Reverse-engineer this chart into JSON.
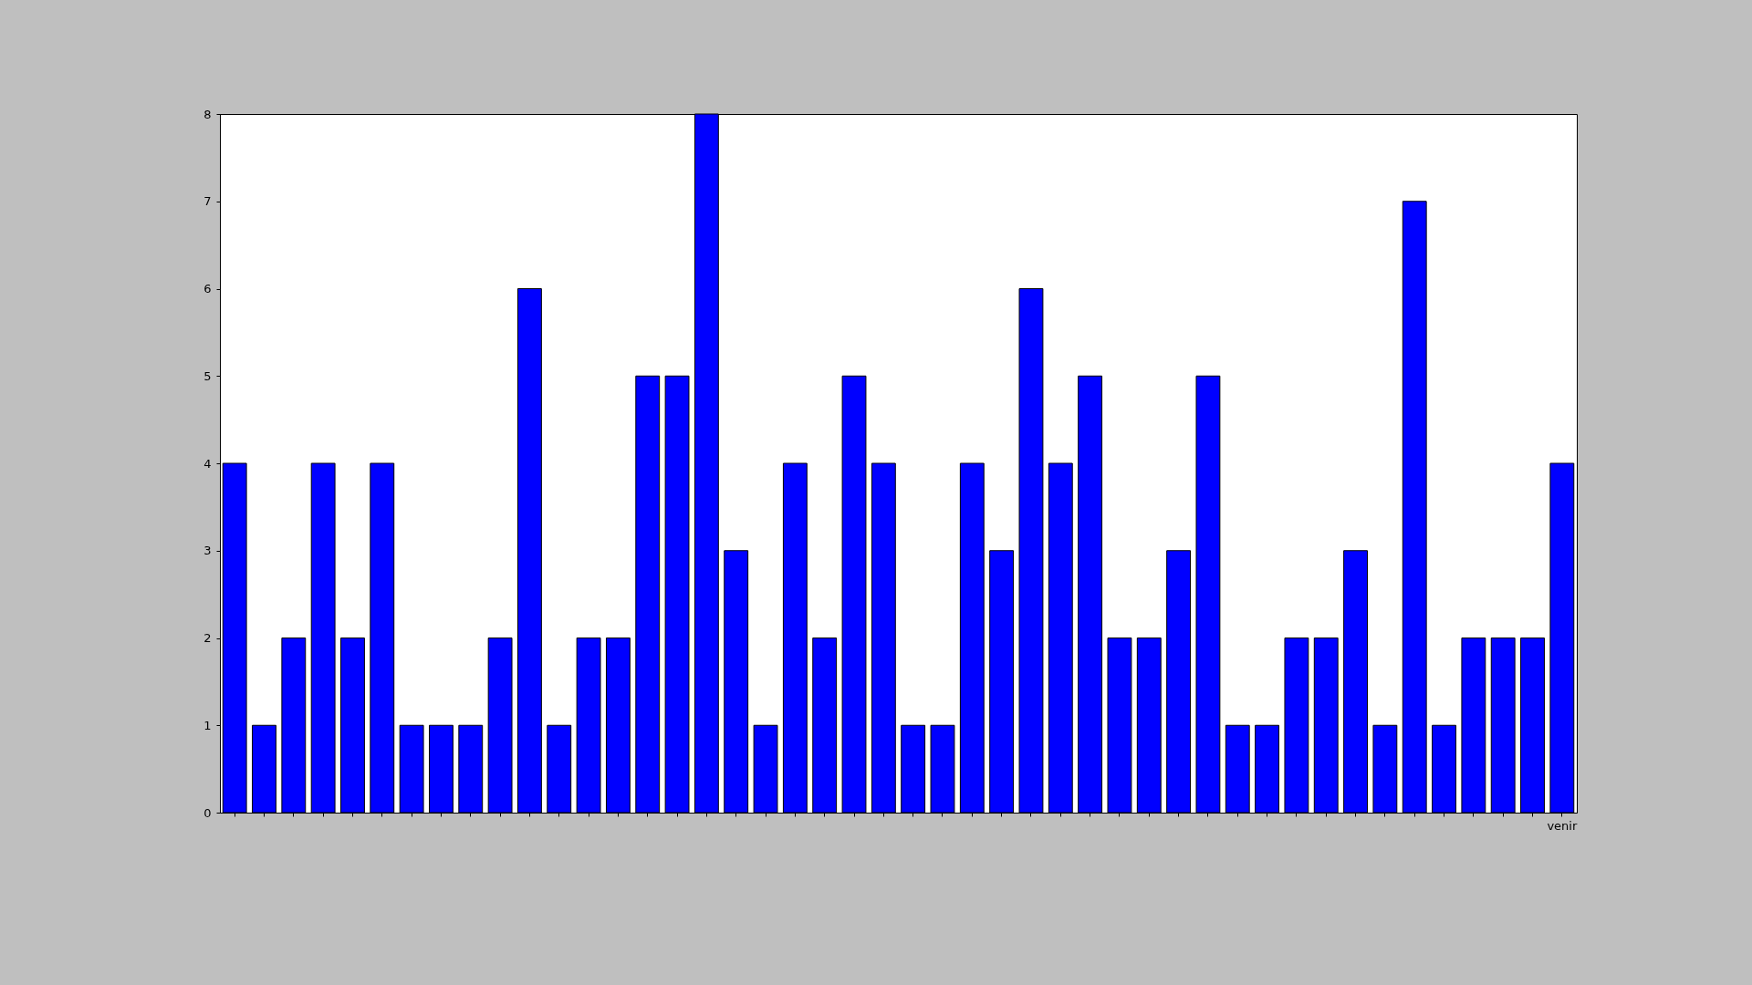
{
  "chart_data": {
    "type": "bar",
    "categories": [
      null,
      null,
      null,
      null,
      null,
      null,
      null,
      null,
      null,
      null,
      null,
      null,
      null,
      null,
      null,
      null,
      null,
      null,
      null,
      null,
      null,
      null,
      null,
      null,
      null,
      null,
      null,
      null,
      null,
      null,
      null,
      null,
      null,
      null,
      null,
      null,
      null,
      null,
      null,
      null,
      null,
      null,
      null,
      null,
      null,
      "venir"
    ],
    "values": [
      4,
      1,
      2,
      4,
      2,
      4,
      1,
      1,
      1,
      2,
      6,
      1,
      2,
      2,
      5,
      5,
      8,
      3,
      1,
      4,
      2,
      5,
      4,
      1,
      1,
      4,
      3,
      6,
      4,
      5,
      2,
      2,
      3,
      5,
      1,
      1,
      2,
      2,
      3,
      1,
      7,
      1,
      2,
      2,
      2,
      4
    ],
    "color": "#0000ff",
    "ylim": [
      0,
      8
    ],
    "yticks": [
      0,
      1,
      2,
      3,
      4,
      5,
      6,
      7,
      8
    ]
  }
}
